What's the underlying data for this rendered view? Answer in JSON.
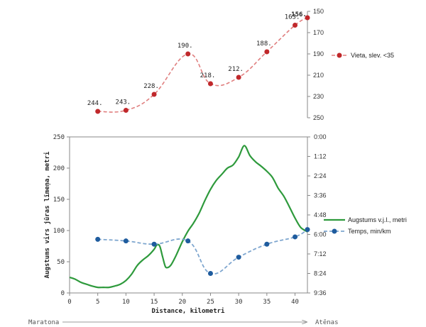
{
  "chart_data": [
    {
      "type": "line",
      "name": "ranking",
      "x": [
        5,
        10,
        15,
        21,
        25,
        30,
        35,
        40,
        42.2
      ],
      "series": [
        {
          "name": "Vieta, slev. <35",
          "values": [
            244,
            243,
            228,
            190,
            218,
            212,
            188,
            163,
            156
          ],
          "labels": [
            "244.",
            "243.",
            "228.",
            "190.",
            "218.",
            "212.",
            "188.",
            "163.",
            "156."
          ],
          "color": "#c0282b",
          "line_color": "#e07f7f",
          "dashed": true
        }
      ],
      "y_axis": {
        "side": "right",
        "inverted": true,
        "range": [
          150,
          250
        ],
        "ticks": [
          "150",
          "170",
          "190",
          "210",
          "230",
          "250"
        ]
      },
      "legend": {
        "placement": "right",
        "label": "Vieta, slev. <35"
      }
    },
    {
      "type": "line",
      "name": "elevation-and-pace",
      "xlabel": "Distance, kilometri",
      "xlim": [
        0,
        42.2
      ],
      "x_ticks": [
        "0",
        "5",
        "10",
        "15",
        "20",
        "25",
        "30",
        "35",
        "40"
      ],
      "ylabel": "Augstums virs jūras līmeņa, metri",
      "ylim": [
        0,
        250
      ],
      "y_ticks": [
        "0",
        "50",
        "100",
        "150",
        "200",
        "250"
      ],
      "y2_ticks": [
        "0:00",
        "1:12",
        "2:24",
        "3:36",
        "4:48",
        "6:00",
        "7:12",
        "8:24",
        "9:36"
      ],
      "y2_axis": {
        "side": "right",
        "inverted": true,
        "range_minutes": [
          0,
          576
        ]
      },
      "series": [
        {
          "name": "Augstums v.j.l., metri",
          "axis": "left",
          "color": "#2e9a3c",
          "x": [
            0,
            1,
            2,
            3,
            4,
            5,
            6,
            7,
            8,
            9,
            10,
            11,
            12,
            13,
            14,
            15,
            15.5,
            16,
            16.5,
            17,
            17.5,
            18,
            18.5,
            19,
            20,
            21,
            22,
            23,
            24,
            25,
            26,
            27,
            28,
            29,
            30,
            31,
            32,
            33,
            34,
            35,
            36,
            37,
            38,
            39,
            40,
            41,
            42.2
          ],
          "values": [
            25,
            22,
            17,
            14,
            11,
            9,
            9,
            9,
            11,
            14,
            20,
            30,
            44,
            53,
            60,
            70,
            77,
            75,
            58,
            42,
            41,
            45,
            53,
            62,
            82,
            99,
            112,
            128,
            148,
            166,
            180,
            190,
            200,
            205,
            218,
            236,
            220,
            210,
            203,
            195,
            185,
            168,
            155,
            138,
            120,
            105,
            98
          ]
        },
        {
          "name": "Temps, min/km",
          "axis": "right",
          "color": "#1f5c9e",
          "line_color": "#7ea6cf",
          "dashed": true,
          "x": [
            5,
            10,
            15,
            21,
            25,
            30,
            35,
            40,
            42.2
          ],
          "pace_labels": [
            "6:18",
            "6:24",
            "6:36",
            "6:24",
            "8:24",
            "7:24",
            "6:36",
            "6:09",
            "5:42"
          ],
          "pace_minutes": [
            378,
            384,
            396,
            384,
            504,
            444,
            396,
            369,
            342
          ]
        }
      ],
      "legend": {
        "placement": "right",
        "entries": [
          "Augstums v.j.l., metri",
          "Temps, min/km"
        ]
      }
    }
  ],
  "route": {
    "start": "Maratona",
    "end": "Atēnas"
  }
}
